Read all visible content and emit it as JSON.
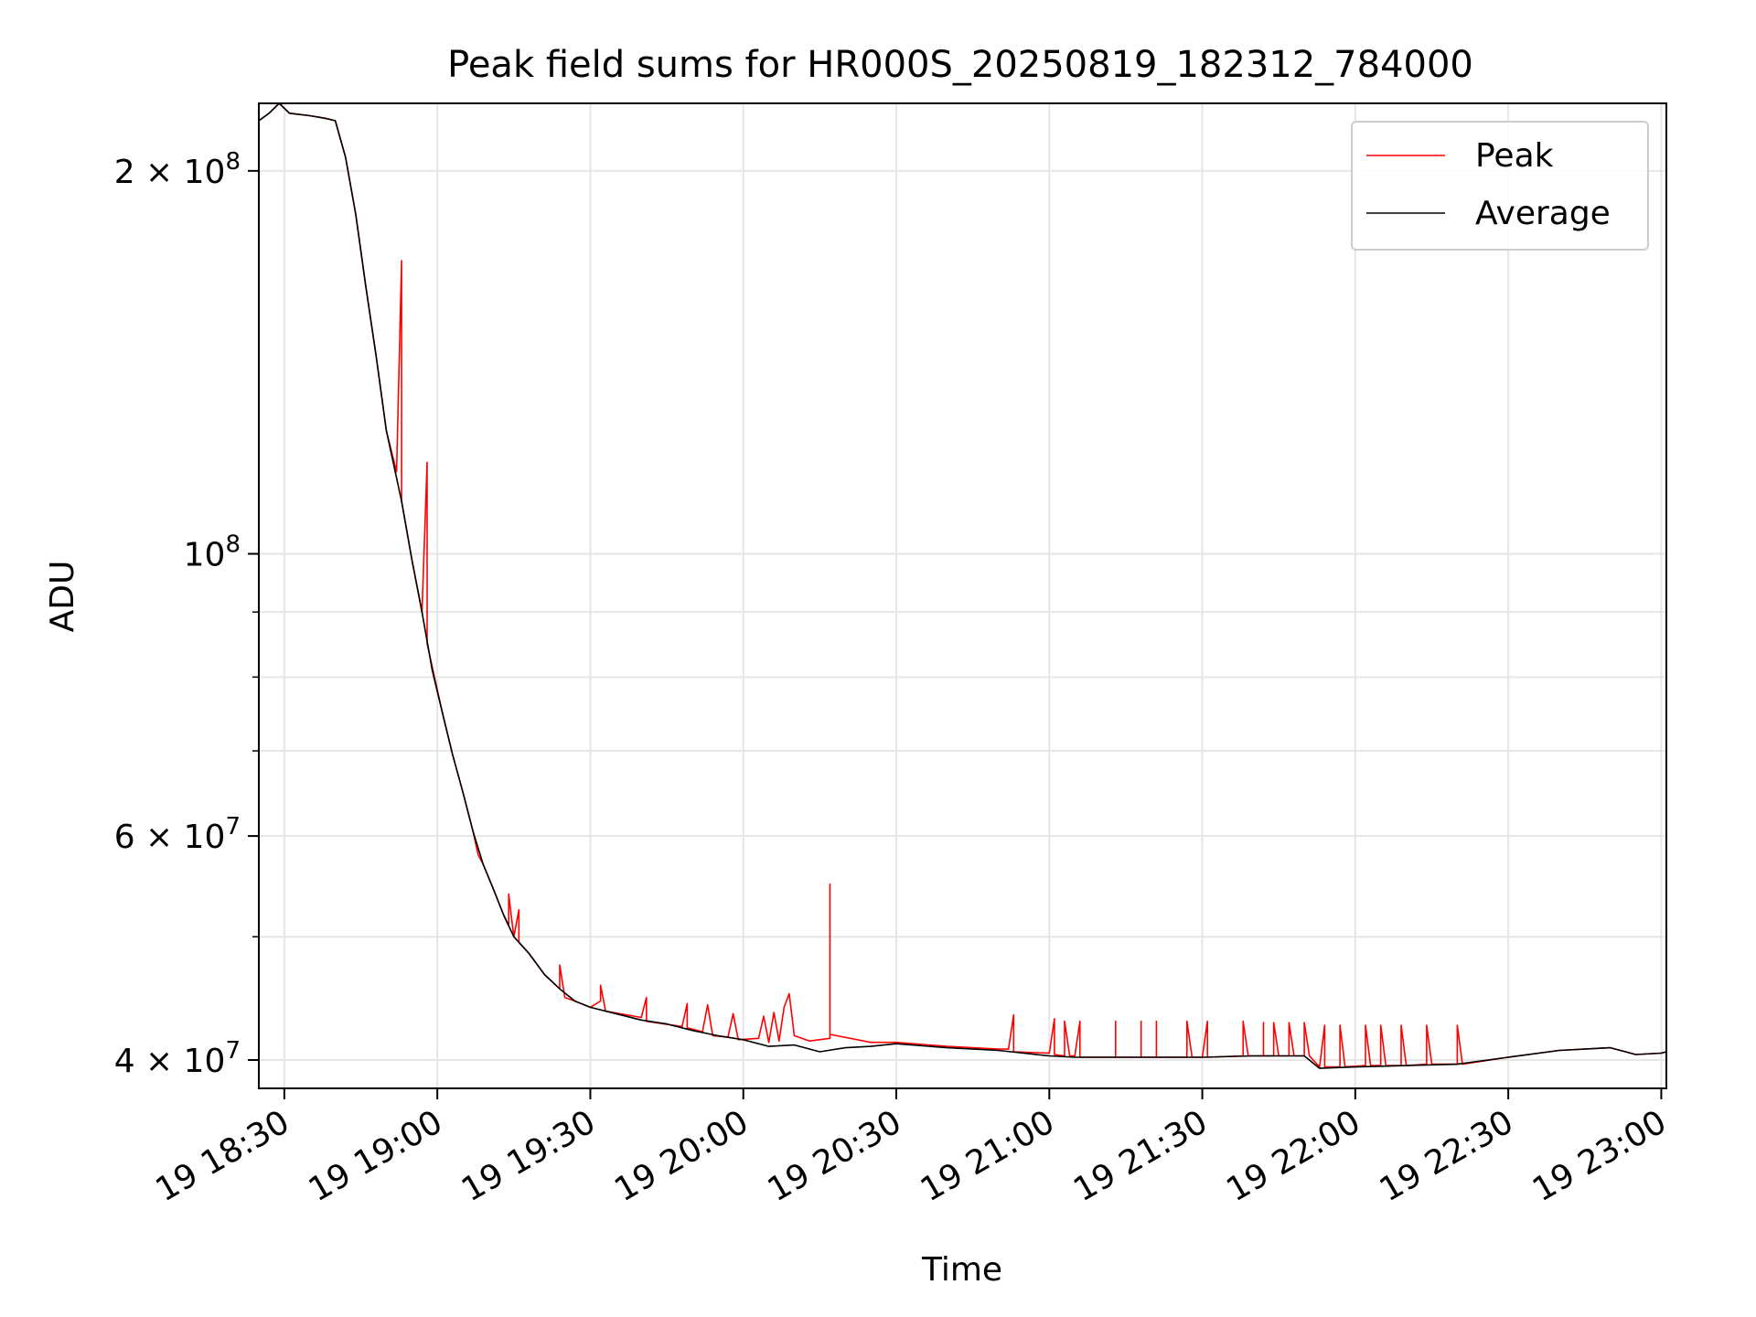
{
  "chart_data": {
    "type": "line",
    "title": "Peak field sums for HR000S_20250819_182312_784000",
    "xlabel": "Time",
    "ylabel": "ADU",
    "yscale": "log",
    "grid": true,
    "legend_placement": "top-right",
    "x_range": [
      "19 18:25",
      "19 23:01"
    ],
    "ylim": [
      38000000,
      226000000
    ],
    "x_ticks": [
      {
        "t": "18:30",
        "label": "19 18:30"
      },
      {
        "t": "19:00",
        "label": "19 19:00"
      },
      {
        "t": "19:30",
        "label": "19 19:30"
      },
      {
        "t": "20:00",
        "label": "19 20:00"
      },
      {
        "t": "20:30",
        "label": "19 20:30"
      },
      {
        "t": "21:00",
        "label": "19 21:00"
      },
      {
        "t": "21:30",
        "label": "19 21:30"
      },
      {
        "t": "22:00",
        "label": "19 22:00"
      },
      {
        "t": "22:30",
        "label": "19 22:30"
      },
      {
        "t": "23:00",
        "label": "19 23:00"
      }
    ],
    "y_major_ticks": [
      {
        "value": 40000000,
        "mantissa": "4",
        "exponent": "7"
      },
      {
        "value": 60000000,
        "mantissa": "6",
        "exponent": "7"
      },
      {
        "value": 100000000,
        "mantissa": "",
        "exponent": "8"
      },
      {
        "value": 200000000,
        "mantissa": "2",
        "exponent": "8"
      }
    ],
    "y_minor_ticks": [
      50000000,
      70000000,
      80000000,
      90000000
    ],
    "series": [
      {
        "name": "Average",
        "color": "#000000",
        "points": [
          [
            "18:25",
            219000000
          ],
          [
            "18:27",
            222000000
          ],
          [
            "18:29",
            226000000
          ],
          [
            "18:31",
            222000000
          ],
          [
            "18:35",
            221000000
          ],
          [
            "18:38",
            220000000
          ],
          [
            "18:40",
            219000000
          ],
          [
            "18:42",
            205000000
          ],
          [
            "18:44",
            185000000
          ],
          [
            "18:46",
            162000000
          ],
          [
            "18:48",
            143000000
          ],
          [
            "18:50",
            125000000
          ],
          [
            "18:53",
            110000000
          ],
          [
            "18:55",
            99000000
          ],
          [
            "18:57",
            90000000
          ],
          [
            "18:59",
            81000000
          ],
          [
            "19:01",
            75000000
          ],
          [
            "19:03",
            69500000
          ],
          [
            "19:05",
            65000000
          ],
          [
            "19:07",
            60500000
          ],
          [
            "19:09",
            57000000
          ],
          [
            "19:11",
            54500000
          ],
          [
            "19:13",
            52000000
          ],
          [
            "19:15",
            50000000
          ],
          [
            "19:18",
            48500000
          ],
          [
            "19:21",
            46700000
          ],
          [
            "19:24",
            45500000
          ],
          [
            "19:27",
            44500000
          ],
          [
            "19:30",
            44000000
          ],
          [
            "19:35",
            43500000
          ],
          [
            "19:40",
            43000000
          ],
          [
            "19:45",
            42700000
          ],
          [
            "19:50",
            42200000
          ],
          [
            "19:55",
            41800000
          ],
          [
            "20:00",
            41500000
          ],
          [
            "20:05",
            41000000
          ],
          [
            "20:10",
            41100000
          ],
          [
            "20:15",
            40600000
          ],
          [
            "20:20",
            40900000
          ],
          [
            "20:25",
            41000000
          ],
          [
            "20:30",
            41200000
          ],
          [
            "20:40",
            40900000
          ],
          [
            "20:50",
            40700000
          ],
          [
            "21:00",
            40300000
          ],
          [
            "21:05",
            40200000
          ],
          [
            "21:15",
            40200000
          ],
          [
            "21:30",
            40200000
          ],
          [
            "21:40",
            40300000
          ],
          [
            "21:50",
            40300000
          ],
          [
            "21:53",
            39400000
          ],
          [
            "22:00",
            39500000
          ],
          [
            "22:10",
            39600000
          ],
          [
            "22:20",
            39700000
          ],
          [
            "22:30",
            40200000
          ],
          [
            "22:40",
            40700000
          ],
          [
            "22:50",
            40900000
          ],
          [
            "22:55",
            40400000
          ],
          [
            "23:00",
            40500000
          ],
          [
            "23:01",
            40600000
          ]
        ]
      },
      {
        "name": "Peak",
        "color": "#ff0000",
        "points": [
          [
            "18:25",
            219000000
          ],
          [
            "18:27",
            222000000
          ],
          [
            "18:29",
            226000000
          ],
          [
            "18:31",
            222000000
          ],
          [
            "18:35",
            221000000
          ],
          [
            "18:38",
            220000000
          ],
          [
            "18:40",
            219000000
          ],
          [
            "18:42",
            205000000
          ],
          [
            "18:44",
            185000000
          ],
          [
            "18:46",
            162000000
          ],
          [
            "18:48",
            143000000
          ],
          [
            "18:50",
            125000000
          ],
          [
            "18:52",
            116000000
          ],
          [
            "18:53",
            170000000
          ],
          [
            "18:53",
            110000000
          ],
          [
            "18:55",
            99000000
          ],
          [
            "18:57",
            90000000
          ],
          [
            "18:58",
            118000000
          ],
          [
            "18:58",
            85000000
          ],
          [
            "19:01",
            75000000
          ],
          [
            "19:03",
            69500000
          ],
          [
            "19:05",
            65000000
          ],
          [
            "19:07",
            60500000
          ],
          [
            "19:08",
            58000000
          ],
          [
            "19:09",
            57000000
          ],
          [
            "19:11",
            54500000
          ],
          [
            "19:13",
            52000000
          ],
          [
            "19:14",
            51000000
          ],
          [
            "19:14",
            54000000
          ],
          [
            "19:15",
            50000000
          ],
          [
            "19:16",
            52500000
          ],
          [
            "19:16",
            49500000
          ],
          [
            "19:18",
            48500000
          ],
          [
            "19:21",
            46700000
          ],
          [
            "19:24",
            45500000
          ],
          [
            "19:24",
            47500000
          ],
          [
            "19:25",
            44800000
          ],
          [
            "19:27",
            44500000
          ],
          [
            "19:30",
            44000000
          ],
          [
            "19:32",
            44500000
          ],
          [
            "19:32",
            45800000
          ],
          [
            "19:33",
            43700000
          ],
          [
            "19:40",
            43200000
          ],
          [
            "19:41",
            44800000
          ],
          [
            "19:41",
            42900000
          ],
          [
            "19:48",
            42500000
          ],
          [
            "19:49",
            44300000
          ],
          [
            "19:49",
            42400000
          ],
          [
            "19:52",
            42100000
          ],
          [
            "19:53",
            44200000
          ],
          [
            "19:54",
            41800000
          ],
          [
            "19:57",
            41700000
          ],
          [
            "19:58",
            43500000
          ],
          [
            "19:59",
            41500000
          ],
          [
            "20:03",
            41600000
          ],
          [
            "20:04",
            43300000
          ],
          [
            "20:05",
            41300000
          ],
          [
            "20:06",
            43600000
          ],
          [
            "20:07",
            41400000
          ],
          [
            "20:08",
            44000000
          ],
          [
            "20:09",
            45100000
          ],
          [
            "20:10",
            41800000
          ],
          [
            "20:13",
            41400000
          ],
          [
            "20:17",
            41600000
          ],
          [
            "20:17",
            55000000
          ],
          [
            "20:17",
            41900000
          ],
          [
            "20:25",
            41300000
          ],
          [
            "20:30",
            41300000
          ],
          [
            "20:40",
            41000000
          ],
          [
            "20:50",
            40800000
          ],
          [
            "20:52",
            40800000
          ],
          [
            "20:53",
            43400000
          ],
          [
            "20:53",
            40600000
          ],
          [
            "21:00",
            40500000
          ],
          [
            "21:01",
            43100000
          ],
          [
            "21:01",
            40400000
          ],
          [
            "21:03",
            40300000
          ],
          [
            "21:03",
            42900000
          ],
          [
            "21:04",
            40300000
          ],
          [
            "21:05",
            40300000
          ],
          [
            "21:06",
            42900000
          ],
          [
            "21:06",
            40200000
          ],
          [
            "21:13",
            40200000
          ],
          [
            "21:13",
            42900000
          ],
          [
            "21:13",
            40200000
          ],
          [
            "21:18",
            40200000
          ],
          [
            "21:18",
            42900000
          ],
          [
            "21:18",
            40200000
          ],
          [
            "21:21",
            40200000
          ],
          [
            "21:21",
            42900000
          ],
          [
            "21:21",
            40200000
          ],
          [
            "21:27",
            40200000
          ],
          [
            "21:27",
            42900000
          ],
          [
            "21:28",
            40200000
          ],
          [
            "21:30",
            40200000
          ],
          [
            "21:31",
            42900000
          ],
          [
            "21:31",
            40200000
          ],
          [
            "21:38",
            40300000
          ],
          [
            "21:38",
            42900000
          ],
          [
            "21:39",
            40300000
          ],
          [
            "21:42",
            40300000
          ],
          [
            "21:42",
            42800000
          ],
          [
            "21:42",
            40300000
          ],
          [
            "21:44",
            40300000
          ],
          [
            "21:44",
            42800000
          ],
          [
            "21:45",
            40300000
          ],
          [
            "21:47",
            40300000
          ],
          [
            "21:47",
            42800000
          ],
          [
            "21:48",
            40300000
          ],
          [
            "21:50",
            40300000
          ],
          [
            "21:50",
            42800000
          ],
          [
            "21:51",
            40300000
          ],
          [
            "21:53",
            39500000
          ],
          [
            "21:54",
            42600000
          ],
          [
            "21:54",
            39500000
          ],
          [
            "21:57",
            39500000
          ],
          [
            "21:57",
            42600000
          ],
          [
            "21:58",
            39500000
          ],
          [
            "22:02",
            39600000
          ],
          [
            "22:02",
            42600000
          ],
          [
            "22:03",
            39600000
          ],
          [
            "22:05",
            39600000
          ],
          [
            "22:05",
            42600000
          ],
          [
            "22:06",
            39600000
          ],
          [
            "22:09",
            39600000
          ],
          [
            "22:09",
            42600000
          ],
          [
            "22:10",
            39600000
          ],
          [
            "22:14",
            39700000
          ],
          [
            "22:14",
            42600000
          ],
          [
            "22:15",
            39700000
          ],
          [
            "22:20",
            39700000
          ],
          [
            "22:20",
            42600000
          ],
          [
            "22:21",
            39700000
          ],
          [
            "22:30",
            40200000
          ],
          [
            "22:40",
            40700000
          ],
          [
            "22:50",
            40900000
          ],
          [
            "22:55",
            40400000
          ],
          [
            "23:00",
            40500000
          ],
          [
            "23:01",
            40600000
          ]
        ]
      }
    ]
  }
}
